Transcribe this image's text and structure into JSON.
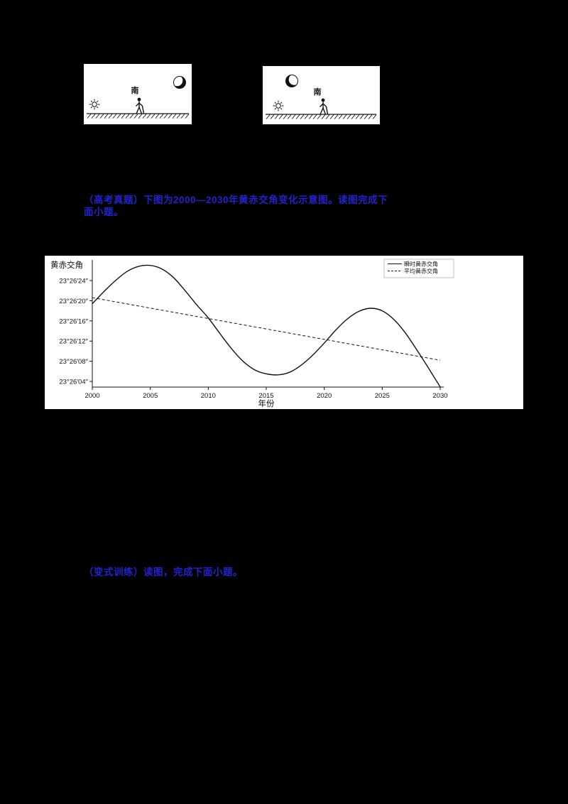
{
  "page": {
    "background": "#000000",
    "accent_blue": "#2323cc"
  },
  "questions": {
    "q1": "（高考真题）下图为2000—2030年黄赤交角变化示意图。读图完成下面小题。",
    "q2": "（变式训练）读图，完成下面小题。"
  },
  "diagrams": {
    "left": {
      "south_label": "南",
      "icons": [
        "sun-icon",
        "person-figure",
        "waning-crescent-moon-icon",
        "ground-hatch"
      ]
    },
    "right": {
      "south_label": "南",
      "icons": [
        "waxing-crescent-moon-icon",
        "sun-icon",
        "person-figure",
        "ground-hatch"
      ]
    }
  },
  "chart_data": {
    "type": "line",
    "title": "",
    "ylabel": "黄赤交角",
    "xlabel": "年份",
    "x_ticks": [
      2000,
      2005,
      2010,
      2015,
      2020,
      2025,
      2030
    ],
    "y_ticks": [
      "23°26′24″",
      "23°26′20″",
      "23°26′16″",
      "23°26′12″",
      "23°26′08″",
      "23°26′04″"
    ],
    "y_tick_values": [
      24,
      20,
      16,
      12,
      8,
      4
    ],
    "xlim": [
      2000,
      2030
    ],
    "ylim_arcsec_above_23deg26min": [
      2,
      28
    ],
    "grid": false,
    "legend_position": "top-right",
    "series": [
      {
        "name": "瞬时黄赤交角",
        "style": "solid",
        "x": [
          2000,
          2001,
          2002,
          2003,
          2004,
          2005,
          2006,
          2007,
          2008,
          2009,
          2010,
          2011,
          2012,
          2013,
          2014,
          2015,
          2016,
          2017,
          2018,
          2019,
          2020,
          2021,
          2022,
          2023,
          2024,
          2025,
          2026,
          2027,
          2028,
          2029,
          2030
        ],
        "y": [
          19.4,
          21.8,
          24.0,
          25.8,
          26.8,
          27.0,
          26.3,
          24.6,
          22.0,
          19.2,
          16.6,
          13.5,
          10.5,
          8.0,
          6.3,
          5.5,
          5.3,
          5.8,
          7.2,
          9.2,
          11.6,
          14.2,
          16.4,
          17.9,
          18.5,
          18.0,
          16.3,
          13.6,
          10.2,
          6.6,
          2.9
        ]
      },
      {
        "name": "平均黄赤交角",
        "style": "dashed",
        "x": [
          2000,
          2030
        ],
        "y": [
          20.6,
          8.2
        ]
      }
    ],
    "y_unit_note": "arcseconds above 23°26′00″"
  }
}
